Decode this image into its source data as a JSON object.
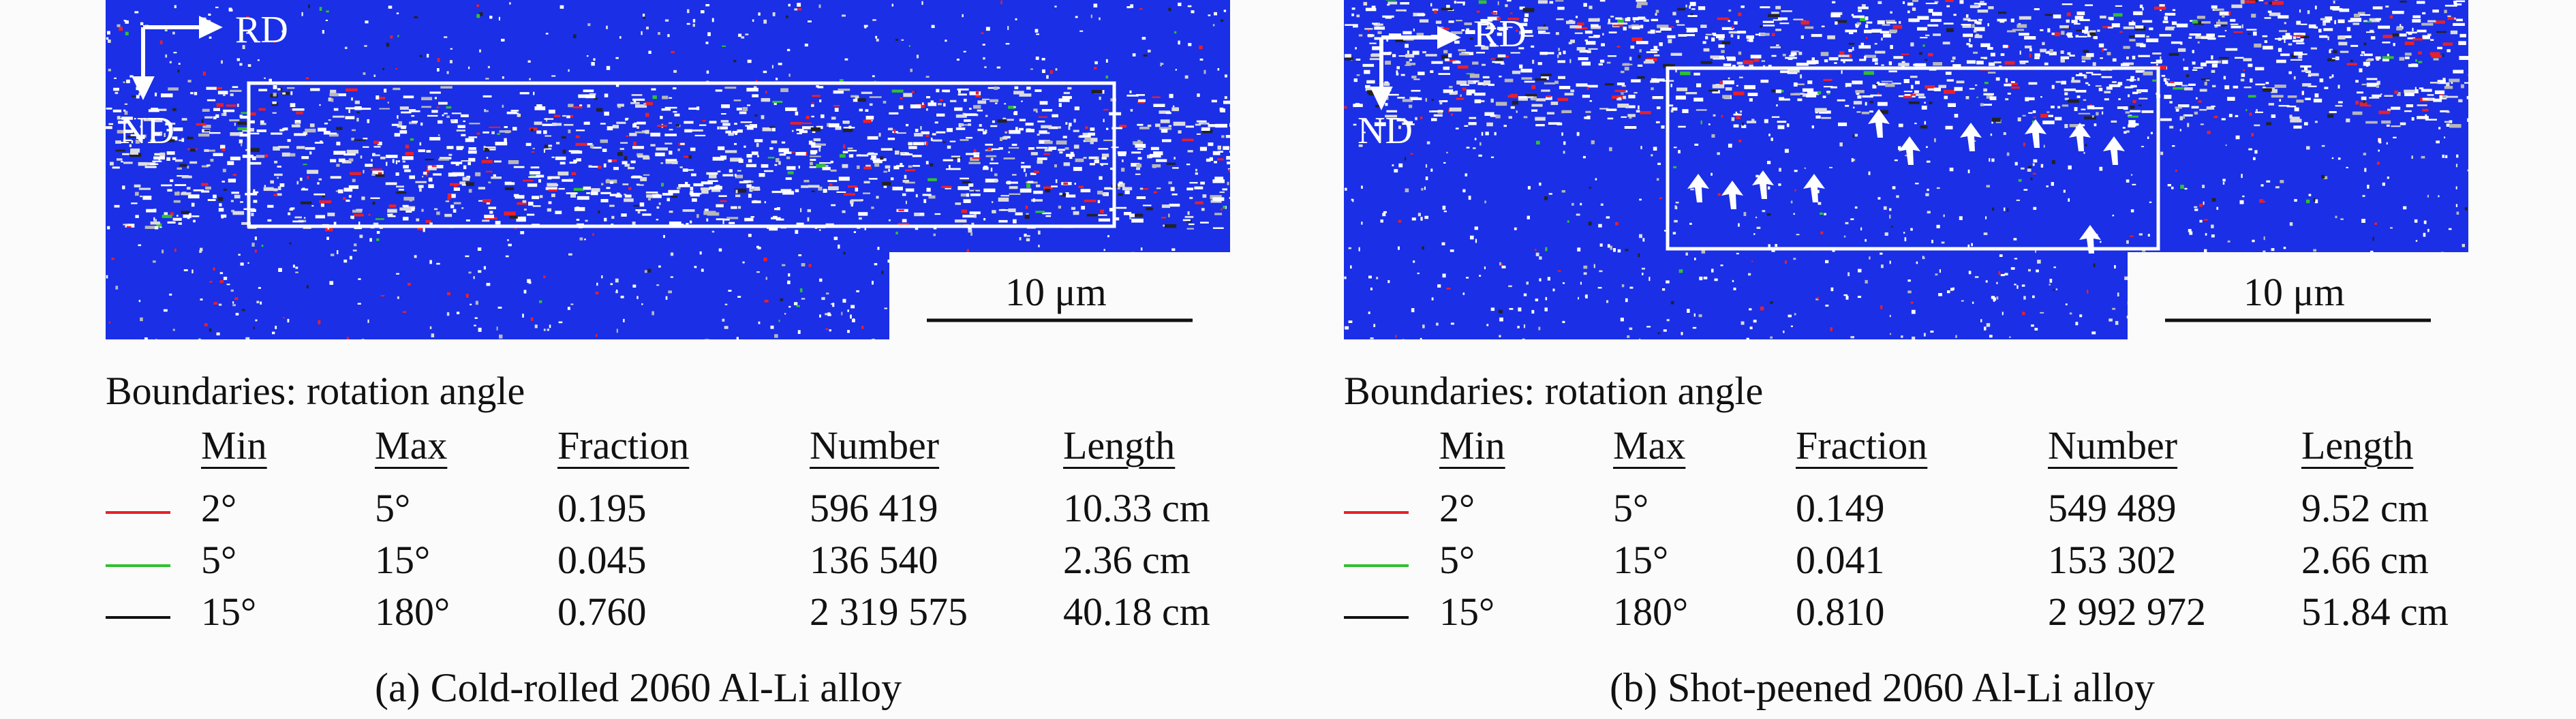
{
  "panels": [
    {
      "axis_rd": "RD",
      "axis_nd": "ND",
      "scale_bar": "10 μm",
      "legend_title": "Boundaries: rotation angle",
      "headers": [
        "Min",
        "Max",
        "Fraction",
        "Number",
        "Length"
      ],
      "rows": [
        {
          "color": "#e8202a",
          "min": "2°",
          "max": "5°",
          "fraction": "0.195",
          "number": "596 419",
          "length": "10.33 cm"
        },
        {
          "color": "#30c030",
          "min": "5°",
          "max": "15°",
          "fraction": "0.045",
          "number": "136 540",
          "length": "2.36 cm"
        },
        {
          "color": "#111111",
          "min": "15°",
          "max": "180°",
          "fraction": "0.760",
          "number": "2 319 575",
          "length": "40.18 cm"
        }
      ],
      "caption": "(a) Cold-rolled 2060 Al-Li alloy"
    },
    {
      "axis_rd": "RD",
      "axis_nd": "ND",
      "scale_bar": "10 μm",
      "legend_title": "Boundaries: rotation angle",
      "headers": [
        "Min",
        "Max",
        "Fraction",
        "Number",
        "Length"
      ],
      "rows": [
        {
          "color": "#e8202a",
          "min": "2°",
          "max": "5°",
          "fraction": "0.149",
          "number": "549 489",
          "length": "9.52 cm"
        },
        {
          "color": "#30c030",
          "min": "5°",
          "max": "15°",
          "fraction": "0.041",
          "number": "153 302",
          "length": "2.66 cm"
        },
        {
          "color": "#111111",
          "min": "15°",
          "max": "180°",
          "fraction": "0.810",
          "number": "2 992 972",
          "length": "51.84 cm"
        }
      ],
      "caption": "(b) Shot-peened 2060 Al-Li alloy"
    }
  ],
  "colors": {
    "map_blue": "#1a2fe6",
    "grain_white": "#e8e8e8",
    "boundary_red": "#e8202a",
    "boundary_green": "#30c030",
    "boundary_black": "#111111"
  }
}
